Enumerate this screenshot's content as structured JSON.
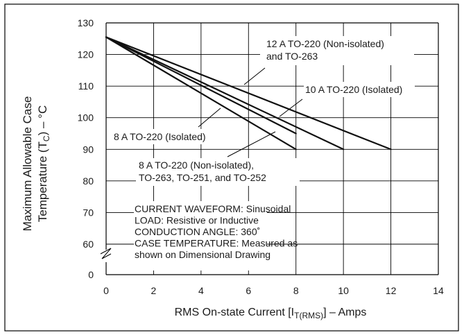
{
  "chart_data": {
    "type": "line",
    "xlabel_main": "RMS On-state Current [I",
    "xlabel_sub": "T(RMS)",
    "xlabel_tail": "] – Amps",
    "ylabel_line1": "Maximum Allowable Case",
    "ylabel_line2_main": "Temperature (T",
    "ylabel_line2_sub": "C",
    "ylabel_line2_tail": ") – °C",
    "xlim": [
      0,
      14
    ],
    "ylim": [
      50,
      130
    ],
    "x_ticks": [
      "0",
      "2",
      "4",
      "6",
      "8",
      "10",
      "12",
      "14"
    ],
    "y_ticks": [
      "60",
      "70",
      "80",
      "90",
      "100",
      "110",
      "120",
      "130"
    ],
    "y_zero_label": "0",
    "axis_break": true,
    "grid": true,
    "series": [
      {
        "name": "8 A TO-220 (Isolated)",
        "x": [
          0,
          8
        ],
        "y": [
          125.5,
          90
        ]
      },
      {
        "name": "8 A TO-220 (Non-isolated), TO-263, TO-251, and TO-252",
        "x": [
          0,
          8
        ],
        "y": [
          125.5,
          95
        ]
      },
      {
        "name": "10 A TO-220 (Isolated)",
        "x": [
          0,
          10
        ],
        "y": [
          125.5,
          90
        ]
      },
      {
        "name": "12 A TO-220 (Non-isolated) and TO-263",
        "x": [
          0,
          12
        ],
        "y": [
          125.5,
          90
        ]
      }
    ],
    "annotations": {
      "a12": [
        "12 A TO-220 (Non-isolated)",
        "and TO-263"
      ],
      "a10": [
        "10 A TO-220 (Isolated)"
      ],
      "a8iso": [
        "8 A TO-220 (Isolated)"
      ],
      "a8non": [
        "8 A TO-220 (Non-isolated),",
        "TO-263, TO-251, and TO-252"
      ]
    },
    "conditions": [
      "CURRENT WAVEFORM: Sinusoidal",
      "LOAD: Resistive or Inductive",
      "CONDUCTION ANGLE: 360˚",
      "CASE TEMPERATURE: Measured as",
      "shown on Dimensional Drawing"
    ]
  }
}
